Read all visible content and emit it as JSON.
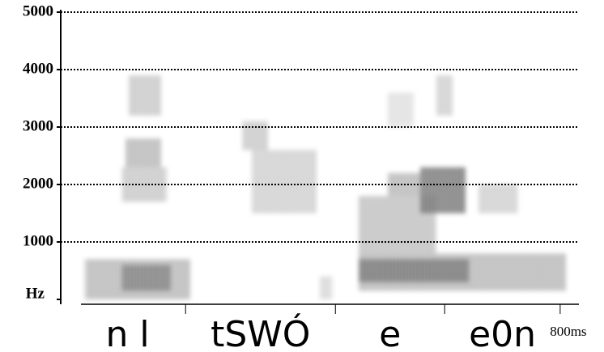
{
  "chart_data": {
    "type": "spectrogram",
    "ylim": [
      0,
      5000
    ],
    "yticks": [
      {
        "value": 0,
        "label": "Hz"
      },
      1000,
      2000,
      3000,
      4000,
      5000
    ],
    "xlim": [
      0,
      830
    ],
    "xticks": [
      {
        "value": 800,
        "label": "800ms"
      }
    ],
    "segment_boundaries": [
      200,
      440,
      615,
      800
    ],
    "phones": [
      "n l",
      "tSWÓ",
      "e",
      "e0n"
    ],
    "grid": true,
    "color": "#000000",
    "regions": [
      {
        "x": [
          39,
          208
        ],
        "y": [
          0,
          700
        ],
        "intensity": 0.45
      },
      {
        "x": [
          97,
          175
        ],
        "y": [
          150,
          600
        ],
        "intensity": 0.7
      },
      {
        "x": [
          97,
          169
        ],
        "y": [
          1700,
          2300
        ],
        "intensity": 0.35
      },
      {
        "x": [
          104,
          162
        ],
        "y": [
          2300,
          2800
        ],
        "intensity": 0.45
      },
      {
        "x": [
          110,
          162
        ],
        "y": [
          3200,
          3900
        ],
        "intensity": 0.35
      },
      {
        "x": [
          292,
          331
        ],
        "y": [
          2600,
          3100
        ],
        "intensity": 0.35
      },
      {
        "x": [
          305,
          409
        ],
        "y": [
          1500,
          2600
        ],
        "intensity": 0.3
      },
      {
        "x": [
          415,
          434
        ],
        "y": [
          0,
          400
        ],
        "intensity": 0.25
      },
      {
        "x": [
          477,
          810
        ],
        "y": [
          150,
          800
        ],
        "intensity": 0.45
      },
      {
        "x": [
          477,
          655
        ],
        "y": [
          300,
          700
        ],
        "intensity": 0.8
      },
      {
        "x": [
          477,
          600
        ],
        "y": [
          800,
          1800
        ],
        "intensity": 0.4
      },
      {
        "x": [
          577,
          648
        ],
        "y": [
          1500,
          2300
        ],
        "intensity": 0.85
      },
      {
        "x": [
          525,
          577
        ],
        "y": [
          1800,
          2200
        ],
        "intensity": 0.45
      },
      {
        "x": [
          668,
          733
        ],
        "y": [
          1500,
          2000
        ],
        "intensity": 0.3
      },
      {
        "x": [
          603,
          629
        ],
        "y": [
          3200,
          3900
        ],
        "intensity": 0.3
      },
      {
        "x": [
          525,
          564
        ],
        "y": [
          3000,
          3600
        ],
        "intensity": 0.2
      }
    ]
  }
}
